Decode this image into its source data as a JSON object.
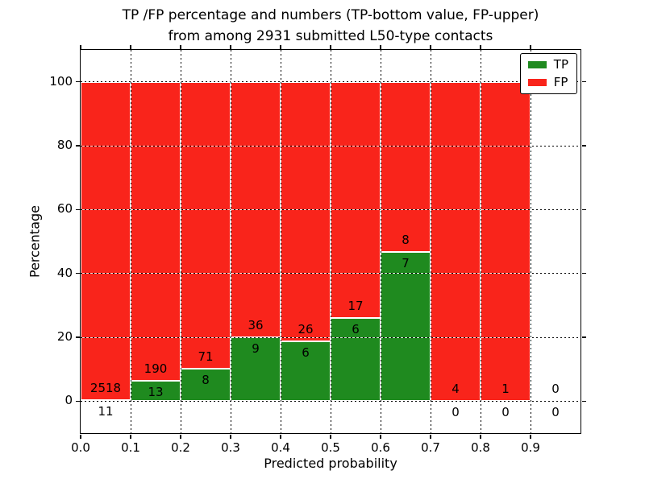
{
  "chart_data": {
    "type": "bar",
    "stacked": true,
    "title_line1": "TP /FP percentage and numbers (TP-bottom value, FP-upper)",
    "title_line2": "from among 2931 submitted L50-type contacts",
    "xlabel": "Predicted probability",
    "ylabel": "Percentage",
    "total_submitted_contacts": 2931,
    "contact_type": "L50",
    "xlim": [
      0.0,
      1.0
    ],
    "ylim": [
      -10,
      110
    ],
    "x_ticks": [
      "0.0",
      "0.1",
      "0.2",
      "0.3",
      "0.4",
      "0.5",
      "0.6",
      "0.7",
      "0.8",
      "0.9"
    ],
    "x_tick_values": [
      0.0,
      0.1,
      0.2,
      0.3,
      0.4,
      0.5,
      0.6,
      0.7,
      0.8,
      0.9
    ],
    "y_ticks": [
      "0",
      "20",
      "40",
      "60",
      "80",
      "100"
    ],
    "y_tick_values": [
      0,
      20,
      40,
      60,
      80,
      100
    ],
    "grid": true,
    "legend_position": "upper right",
    "colors": {
      "tp": "#1f8a1f",
      "fp": "#f9241b"
    },
    "legend": [
      {
        "label": "TP",
        "color": "#1f8a1f"
      },
      {
        "label": "FP",
        "color": "#f9241b"
      }
    ],
    "bins": [
      {
        "range": [
          0.0,
          0.1
        ],
        "tp": 11,
        "fp": 2518,
        "tp_pct": 0.43,
        "fp_pct": 99.57
      },
      {
        "range": [
          0.1,
          0.2
        ],
        "tp": 13,
        "fp": 190,
        "tp_pct": 6.4,
        "fp_pct": 93.6
      },
      {
        "range": [
          0.2,
          0.3
        ],
        "tp": 8,
        "fp": 71,
        "tp_pct": 10.13,
        "fp_pct": 89.87
      },
      {
        "range": [
          0.3,
          0.4
        ],
        "tp": 9,
        "fp": 36,
        "tp_pct": 20.0,
        "fp_pct": 80.0
      },
      {
        "range": [
          0.4,
          0.5
        ],
        "tp": 6,
        "fp": 26,
        "tp_pct": 18.75,
        "fp_pct": 81.25
      },
      {
        "range": [
          0.5,
          0.6
        ],
        "tp": 6,
        "fp": 17,
        "tp_pct": 26.09,
        "fp_pct": 73.91
      },
      {
        "range": [
          0.6,
          0.7
        ],
        "tp": 7,
        "fp": 8,
        "tp_pct": 46.67,
        "fp_pct": 53.33
      },
      {
        "range": [
          0.7,
          0.8
        ],
        "tp": 0,
        "fp": 4,
        "tp_pct": 0.0,
        "fp_pct": 100.0
      },
      {
        "range": [
          0.8,
          0.9
        ],
        "tp": 0,
        "fp": 1,
        "tp_pct": 0.0,
        "fp_pct": 100.0
      },
      {
        "range": [
          0.9,
          1.0
        ],
        "tp": 0,
        "fp": 0,
        "tp_pct": null,
        "fp_pct": null
      }
    ]
  }
}
